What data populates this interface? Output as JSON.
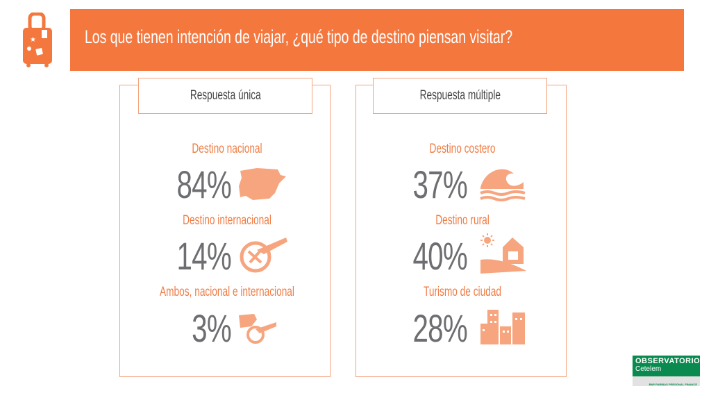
{
  "title": "Los que tienen intención de viajar, ¿qué tipo de destino piensan visitar?",
  "left": {
    "header": "Respuesta única",
    "items": [
      {
        "label": "Destino nacional",
        "value": "84%"
      },
      {
        "label": "Destino internacional",
        "value": "14%"
      },
      {
        "label": "Ambos, nacional e internacional",
        "value": "3%"
      }
    ]
  },
  "right": {
    "header": "Respuesta múltiple",
    "items": [
      {
        "label": "Destino costero",
        "value": "37%"
      },
      {
        "label": "Destino rural",
        "value": "40%"
      },
      {
        "label": "Turismo de ciudad",
        "value": "28%"
      }
    ]
  },
  "logo": {
    "line1": "OBSERVATORIO",
    "line2": "Cetelem",
    "line3": "BNP PARIBAS PERSONAL FINANCE"
  },
  "colors": {
    "accent": "#F4773E",
    "icon": "#F7A57F",
    "number": "#6D6E71"
  }
}
